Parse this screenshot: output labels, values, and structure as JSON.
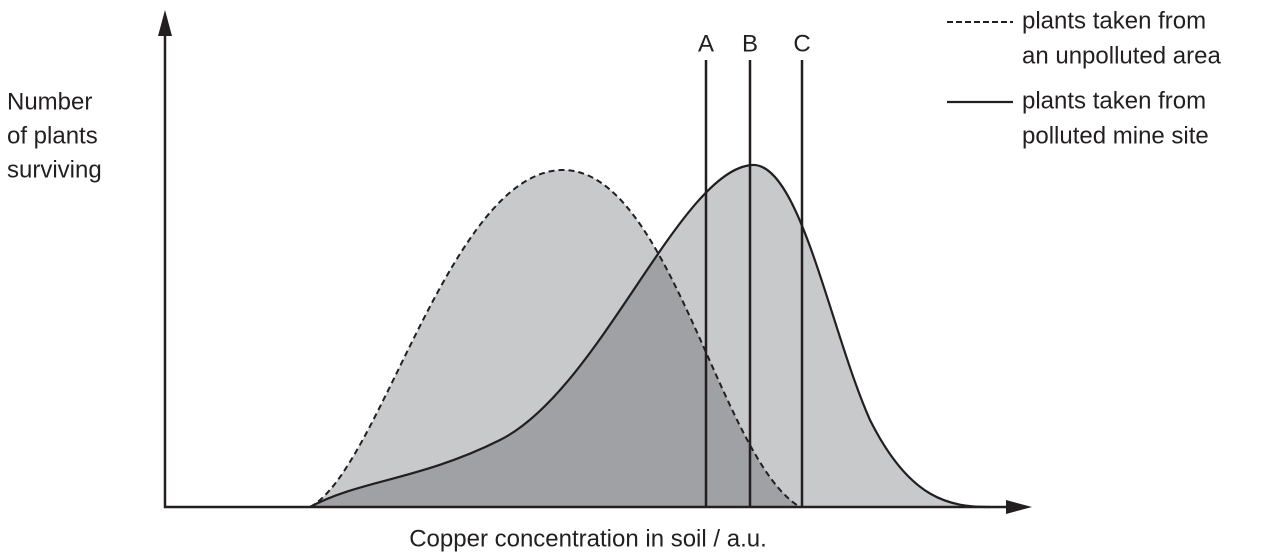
{
  "y_axis_label": [
    "Number",
    "of plants",
    "surviving"
  ],
  "x_axis_label": "Copper concentration in soil / a.u.",
  "legend": [
    {
      "style": "dashed",
      "lines": [
        "plants taken from",
        "an unpolluted area"
      ]
    },
    {
      "style": "solid",
      "lines": [
        "plants taken from",
        "polluted mine site"
      ]
    }
  ],
  "markers": [
    "A",
    "B",
    "C"
  ]
}
